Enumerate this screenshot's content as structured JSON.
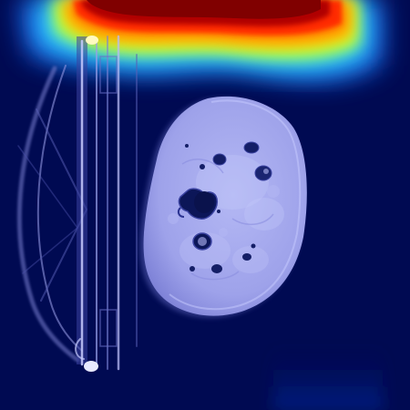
{
  "image": {
    "kind": "axial CT slice with attention heatmap overlay",
    "colormap": "jet",
    "colors": {
      "background": "#000a52",
      "heat_max": "#800000",
      "heat_high": "#ff2a00",
      "heat_mid": "#ffe000",
      "heat_low": "#2ad4ff",
      "tissue": "#aab0f0",
      "bowel_gas": "#101a5a"
    },
    "heatmap_peak_level": 1.0
  }
}
